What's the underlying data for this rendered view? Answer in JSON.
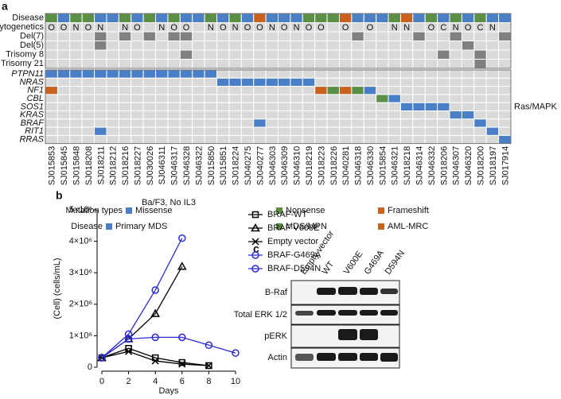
{
  "panels": {
    "a": "a",
    "b": "b",
    "c": "c"
  },
  "oncoprint": {
    "samples": [
      "SJ015853",
      "SJ015845",
      "SJ015848",
      "SJ018208",
      "SJ018211",
      "SJ018212",
      "SJ018216",
      "SJ018227",
      "SJ030026",
      "SJ046311",
      "SJ046317",
      "SJ046328",
      "SJ046322",
      "SJ015850",
      "SJ015851",
      "SJ018224",
      "SJ040275",
      "SJ040277",
      "SJ046303",
      "SJ046309",
      "SJ046310",
      "SJ018219",
      "SJ018223",
      "SJ018226",
      "SJ040281",
      "SJ046318",
      "SJ046330",
      "SJ015854",
      "SJ046321",
      "SJ018218",
      "SJ046314",
      "SJ046332",
      "SJ018206",
      "SJ046307",
      "SJ046320",
      "SJ018200",
      "SJ018197",
      "SJ017914"
    ],
    "disease": {
      "label": "Disease",
      "values": [
        1,
        0,
        1,
        1,
        0,
        0,
        1,
        0,
        1,
        0,
        1,
        0,
        0,
        1,
        0,
        1,
        0,
        2,
        0,
        0,
        0,
        1,
        1,
        1,
        2,
        0,
        0,
        0,
        1,
        2,
        0,
        1,
        0,
        1,
        0,
        1,
        0,
        0
      ]
    },
    "cytogenetics": {
      "label": "Cytogenetics",
      "values": [
        "O",
        "O",
        "N",
        "O",
        "N",
        null,
        "N",
        "O",
        null,
        "N",
        "O",
        "O",
        null,
        "N",
        "O",
        "N",
        "O",
        "O",
        "N",
        "O",
        "N",
        "O",
        "O",
        null,
        "O",
        null,
        "O",
        null,
        "N",
        "N",
        null,
        "O",
        "C",
        "N",
        "O",
        "C",
        "N",
        null
      ]
    },
    "events": [
      {
        "label": "Del(7)",
        "samples": [
          4,
          6,
          8,
          10,
          11,
          25,
          30,
          33,
          37
        ]
      },
      {
        "label": "Del(5)",
        "samples": [
          4,
          34
        ]
      },
      {
        "label": "Trisomy 8",
        "samples": [
          11,
          32,
          35
        ]
      },
      {
        "label": "Trisomy 21",
        "samples": [
          35
        ]
      }
    ],
    "genes": [
      {
        "label": "PTPN11",
        "samples": [
          0,
          1,
          2,
          3,
          4,
          5,
          6,
          7,
          8,
          9,
          10,
          11,
          12,
          13
        ],
        "types": [
          0,
          0,
          0,
          0,
          0,
          0,
          0,
          0,
          0,
          0,
          0,
          0,
          0,
          0
        ]
      },
      {
        "label": "NRAS",
        "samples": [
          14,
          15,
          16,
          17,
          18,
          19,
          20,
          21
        ],
        "types": [
          0,
          0,
          0,
          0,
          0,
          0,
          0,
          0
        ]
      },
      {
        "label": "NF1",
        "samples": [
          0,
          22,
          23,
          24,
          25,
          26
        ],
        "types": [
          2,
          2,
          1,
          2,
          1,
          0
        ]
      },
      {
        "label": "CBL",
        "samples": [
          27,
          28
        ],
        "types": [
          1,
          0
        ]
      },
      {
        "label": "SOS1",
        "samples": [
          29,
          30,
          31,
          32
        ],
        "types": [
          0,
          0,
          0,
          0
        ]
      },
      {
        "label": "KRAS",
        "samples": [
          33,
          34
        ],
        "types": [
          0,
          0
        ]
      },
      {
        "label": "BRAF",
        "samples": [
          17,
          35
        ],
        "types": [
          0,
          0
        ]
      },
      {
        "label": "RIT1",
        "samples": [
          4,
          36
        ],
        "types": [
          0,
          0
        ]
      },
      {
        "label": "RRAS",
        "samples": [
          37
        ],
        "types": [
          0
        ]
      }
    ],
    "pathway": "Ras/MAPK",
    "mutation_legend": {
      "label": "Mutation types",
      "items": [
        {
          "name": "Missense",
          "color": "#4a7fc8"
        },
        {
          "name": "Nonsense",
          "color": "#5b8f45"
        },
        {
          "name": "Frameshift",
          "color": "#c9621e"
        }
      ]
    },
    "disease_legend": {
      "label": "Disease",
      "items": [
        {
          "name": "Primary MDS",
          "color": "#4a7fc8"
        },
        {
          "name": "MDS/MPN",
          "color": "#5b8f45"
        },
        {
          "name": "AML-MRC",
          "color": "#c9621e"
        }
      ]
    },
    "event_color": "#808080",
    "empty_color": "#d9d9d9"
  },
  "chart_data": {
    "type": "line",
    "title": "Ba/F3, No IL3",
    "x_label": "Days",
    "y_label": "(Cell) (cells/mL)",
    "xlim": [
      0,
      10
    ],
    "xticks": [
      0,
      2,
      4,
      6,
      8,
      10
    ],
    "ylim": [
      0,
      5000000
    ],
    "yticks": [
      0,
      {
        "value": 1000000,
        "label": "1×10⁶"
      },
      {
        "value": 2000000,
        "label": "2×10⁶"
      },
      {
        "value": 3000000,
        "label": "3×10⁶"
      },
      {
        "value": 4000000,
        "label": "4×10⁶"
      },
      {
        "value": 5000000,
        "label": "5×10⁶"
      }
    ],
    "series": [
      {
        "name": "BRAF-WT",
        "color": "#000000",
        "marker": "square",
        "x": [
          0,
          2,
          4,
          6,
          8
        ],
        "values": [
          300000,
          600000,
          300000,
          150000,
          50000
        ]
      },
      {
        "name": "BRAF V600E",
        "color": "#000000",
        "marker": "triangle",
        "x": [
          0,
          2,
          4,
          6
        ],
        "values": [
          300000,
          900000,
          1700000,
          3200000
        ]
      },
      {
        "name": "Empty vector",
        "color": "#000000",
        "marker": "cross",
        "x": [
          0,
          2,
          4,
          6,
          8
        ],
        "values": [
          300000,
          500000,
          200000,
          100000,
          50000
        ]
      },
      {
        "name": "BRAF-G469A",
        "color": "#2b2bd6",
        "marker": "circle",
        "x": [
          0,
          2,
          4,
          6
        ],
        "values": [
          300000,
          1050000,
          2450000,
          4100000
        ]
      },
      {
        "name": "BRAF-D594N",
        "color": "#2b2bd6",
        "marker": "circle",
        "x": [
          0,
          2,
          4,
          6,
          8,
          10
        ],
        "values": [
          300000,
          900000,
          950000,
          950000,
          700000,
          450000
        ]
      }
    ]
  },
  "blot": {
    "lanes": [
      "Empty vector",
      "WT",
      "V600E",
      "G469A",
      "D594N"
    ],
    "rows": [
      "B-Raf",
      "Total ERK 1/2",
      "pERK",
      "Actin"
    ]
  }
}
